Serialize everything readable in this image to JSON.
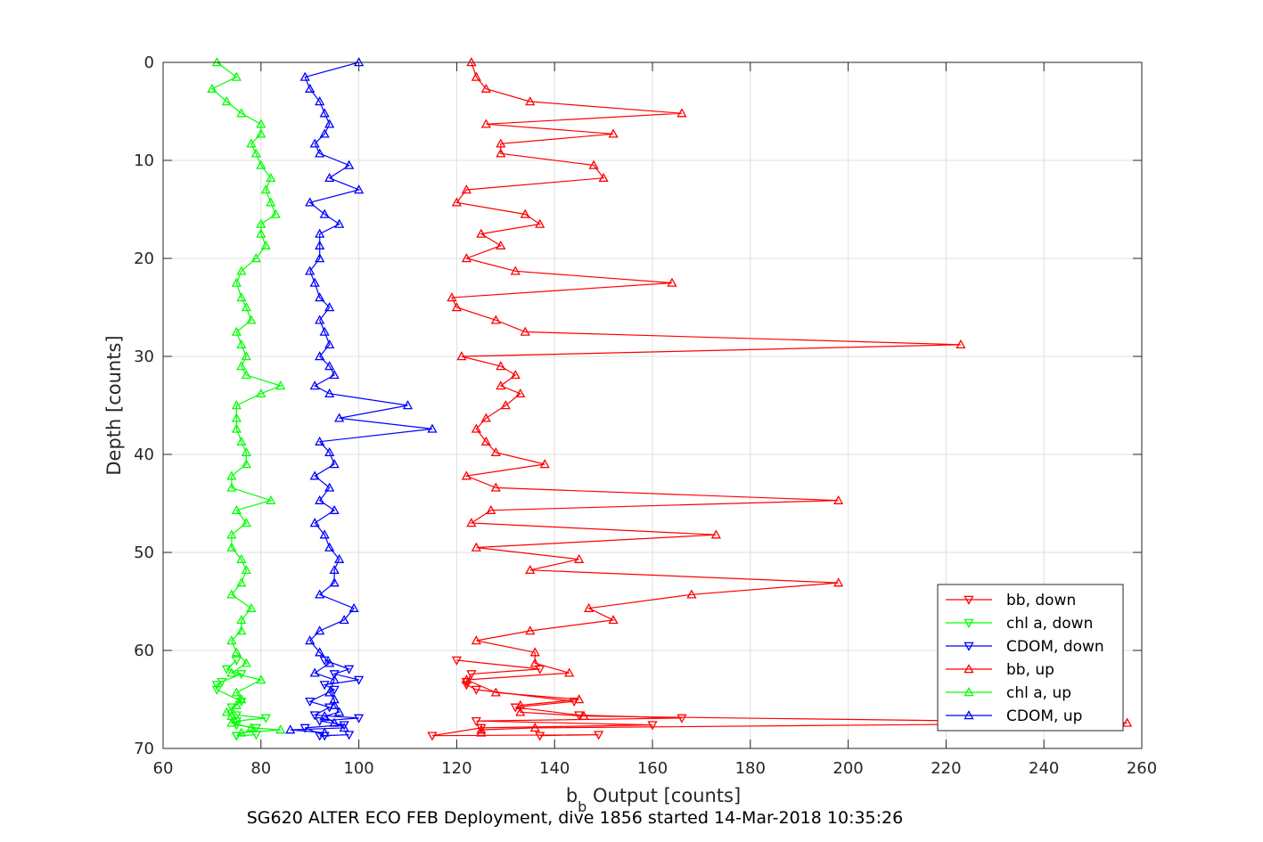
{
  "chart_data": {
    "type": "line",
    "xlabel_main": "b",
    "xlabel_sub": "b",
    "xlabel_rest": " Output [counts]",
    "ylabel": "Depth [counts]",
    "caption": "SG620 ALTER ECO FEB Deployment, dive 1856 started 14-Mar-2018 10:35:26",
    "xlim": [
      60,
      260
    ],
    "ylim": [
      0,
      70
    ],
    "y_reversed": true,
    "grid": true,
    "legend_position": "bottom-right",
    "x_ticks": [
      "60",
      "80",
      "100",
      "120",
      "140",
      "160",
      "180",
      "200",
      "220",
      "240",
      "260"
    ],
    "y_ticks": [
      "0",
      "10",
      "20",
      "30",
      "40",
      "50",
      "60",
      "70"
    ],
    "series": [
      {
        "name": "bb, down",
        "color": "#ff0000",
        "marker": "down",
        "points": [
          [
            120,
            61
          ],
          [
            137,
            61.9
          ],
          [
            123,
            62.4
          ],
          [
            122,
            63.2
          ],
          [
            122,
            63.5
          ],
          [
            124,
            64
          ],
          [
            144,
            65.2
          ],
          [
            132,
            65.8
          ],
          [
            145,
            66.6
          ],
          [
            166,
            66.9
          ],
          [
            124,
            67.2
          ],
          [
            160,
            67.6
          ],
          [
            125,
            67.9
          ],
          [
            115,
            68.7
          ],
          [
            149,
            68.6
          ],
          [
            137,
            68.7
          ]
        ]
      },
      {
        "name": "chl a, down",
        "color": "#00ff00",
        "marker": "down",
        "points": [
          [
            75,
            61
          ],
          [
            73,
            61.9
          ],
          [
            76,
            62.4
          ],
          [
            72,
            63.2
          ],
          [
            71,
            63.5
          ],
          [
            71,
            64
          ],
          [
            76,
            65.2
          ],
          [
            74,
            65.8
          ],
          [
            75,
            66.6
          ],
          [
            81,
            66.9
          ],
          [
            75,
            67.2
          ],
          [
            75,
            67.6
          ],
          [
            79,
            67.9
          ],
          [
            75,
            68.7
          ],
          [
            79,
            68.6
          ],
          [
            75,
            68.7
          ]
        ]
      },
      {
        "name": "CDOM, down",
        "color": "#0000ff",
        "marker": "down",
        "points": [
          [
            93,
            61
          ],
          [
            98,
            61.9
          ],
          [
            95,
            62.4
          ],
          [
            100,
            63
          ],
          [
            93,
            63.5
          ],
          [
            95,
            64
          ],
          [
            90,
            65.2
          ],
          [
            94,
            65.8
          ],
          [
            91,
            66.6
          ],
          [
            100,
            66.9
          ],
          [
            92,
            67.2
          ],
          [
            97,
            67.6
          ],
          [
            89,
            67.9
          ],
          [
            93,
            68.7
          ],
          [
            98,
            68.6
          ],
          [
            92,
            68.7
          ]
        ]
      },
      {
        "name": "bb, up",
        "color": "#ff0000",
        "marker": "up",
        "points": [
          [
            123,
            0
          ],
          [
            124,
            1.5
          ],
          [
            126,
            2.7
          ],
          [
            135,
            4
          ],
          [
            166,
            5.2
          ],
          [
            126,
            6.3
          ],
          [
            152,
            7.3
          ],
          [
            129,
            8.3
          ],
          [
            129,
            9.3
          ],
          [
            148,
            10.5
          ],
          [
            150,
            11.8
          ],
          [
            122,
            13
          ],
          [
            120,
            14.3
          ],
          [
            134,
            15.5
          ],
          [
            137,
            16.5
          ],
          [
            125,
            17.5
          ],
          [
            129,
            18.7
          ],
          [
            122,
            20
          ],
          [
            132,
            21.3
          ],
          [
            164,
            22.5
          ],
          [
            119,
            24
          ],
          [
            120,
            25
          ],
          [
            128,
            26.3
          ],
          [
            134,
            27.5
          ],
          [
            223,
            28.8
          ],
          [
            121,
            30
          ],
          [
            129,
            31
          ],
          [
            132,
            31.9
          ],
          [
            129,
            33
          ],
          [
            133,
            33.8
          ],
          [
            130,
            35
          ],
          [
            126,
            36.3
          ],
          [
            124,
            37.4
          ],
          [
            126,
            38.7
          ],
          [
            128,
            39.8
          ],
          [
            138,
            41
          ],
          [
            122,
            42.2
          ],
          [
            128,
            43.4
          ],
          [
            198,
            44.7
          ],
          [
            127,
            45.7
          ],
          [
            123,
            47
          ],
          [
            173,
            48.2
          ],
          [
            124,
            49.5
          ],
          [
            145,
            50.7
          ],
          [
            135,
            51.8
          ],
          [
            198,
            53.1
          ],
          [
            168,
            54.3
          ],
          [
            147,
            55.7
          ],
          [
            152,
            56.9
          ],
          [
            135,
            58
          ],
          [
            124,
            59
          ],
          [
            136,
            60.2
          ],
          [
            136,
            61.3
          ],
          [
            143,
            62.3
          ],
          [
            122,
            63
          ],
          [
            128,
            64.3
          ],
          [
            145,
            65
          ],
          [
            133,
            65.6
          ],
          [
            133,
            66.3
          ],
          [
            146,
            66.7
          ],
          [
            257,
            67.4
          ],
          [
            136,
            67.9
          ],
          [
            125,
            68.1
          ],
          [
            125,
            68.4
          ]
        ]
      },
      {
        "name": "chl a, up",
        "color": "#00ff00",
        "marker": "up",
        "points": [
          [
            71,
            0
          ],
          [
            75,
            1.5
          ],
          [
            70,
            2.7
          ],
          [
            73,
            4
          ],
          [
            76,
            5.2
          ],
          [
            80,
            6.3
          ],
          [
            80,
            7.3
          ],
          [
            78,
            8.3
          ],
          [
            79,
            9.3
          ],
          [
            80,
            10.5
          ],
          [
            82,
            11.8
          ],
          [
            81,
            13
          ],
          [
            82,
            14.3
          ],
          [
            83,
            15.5
          ],
          [
            80,
            16.5
          ],
          [
            80,
            17.5
          ],
          [
            81,
            18.7
          ],
          [
            79,
            20
          ],
          [
            76,
            21.3
          ],
          [
            75,
            22.5
          ],
          [
            76,
            24
          ],
          [
            77,
            25
          ],
          [
            78,
            26.3
          ],
          [
            75,
            27.5
          ],
          [
            76,
            28.8
          ],
          [
            77,
            30
          ],
          [
            76,
            31
          ],
          [
            77,
            31.9
          ],
          [
            84,
            33
          ],
          [
            80,
            33.8
          ],
          [
            75,
            35
          ],
          [
            75,
            36.3
          ],
          [
            75,
            37.4
          ],
          [
            76,
            38.7
          ],
          [
            77,
            39.8
          ],
          [
            77,
            41
          ],
          [
            74,
            42.2
          ],
          [
            74,
            43.4
          ],
          [
            82,
            44.7
          ],
          [
            75,
            45.7
          ],
          [
            77,
            47
          ],
          [
            74,
            48.2
          ],
          [
            74,
            49.5
          ],
          [
            76,
            50.7
          ],
          [
            77,
            51.8
          ],
          [
            76,
            53.1
          ],
          [
            74,
            54.3
          ],
          [
            78,
            55.7
          ],
          [
            76,
            56.9
          ],
          [
            76,
            58
          ],
          [
            74,
            59
          ],
          [
            75,
            60.2
          ],
          [
            77,
            61.3
          ],
          [
            74,
            62.3
          ],
          [
            80,
            63
          ],
          [
            75,
            64.3
          ],
          [
            76,
            65
          ],
          [
            75,
            65.6
          ],
          [
            73,
            66.3
          ],
          [
            74,
            66.7
          ],
          [
            74,
            67.4
          ],
          [
            78,
            67.9
          ],
          [
            84,
            68.1
          ],
          [
            76,
            68.4
          ]
        ]
      },
      {
        "name": "CDOM, up",
        "color": "#0000ff",
        "marker": "up",
        "points": [
          [
            100,
            0
          ],
          [
            89,
            1.5
          ],
          [
            90,
            2.7
          ],
          [
            92,
            4
          ],
          [
            93,
            5.2
          ],
          [
            94,
            6.3
          ],
          [
            93,
            7.3
          ],
          [
            91,
            8.3
          ],
          [
            92,
            9.3
          ],
          [
            98,
            10.5
          ],
          [
            94,
            11.8
          ],
          [
            100,
            13
          ],
          [
            90,
            14.3
          ],
          [
            93,
            15.5
          ],
          [
            96,
            16.5
          ],
          [
            92,
            17.5
          ],
          [
            92,
            18.7
          ],
          [
            92,
            20
          ],
          [
            90,
            21.3
          ],
          [
            91,
            22.5
          ],
          [
            92,
            24
          ],
          [
            94,
            25
          ],
          [
            92,
            26.3
          ],
          [
            93,
            27.5
          ],
          [
            94,
            28.8
          ],
          [
            92,
            30
          ],
          [
            94,
            31
          ],
          [
            95,
            31.9
          ],
          [
            91,
            33
          ],
          [
            94,
            33.8
          ],
          [
            110,
            35
          ],
          [
            96,
            36.3
          ],
          [
            115,
            37.4
          ],
          [
            92,
            38.7
          ],
          [
            94,
            39.8
          ],
          [
            95,
            41
          ],
          [
            91,
            42.2
          ],
          [
            94,
            43.4
          ],
          [
            92,
            44.7
          ],
          [
            95,
            45.7
          ],
          [
            91,
            47
          ],
          [
            93,
            48.2
          ],
          [
            94,
            49.5
          ],
          [
            96,
            50.7
          ],
          [
            95,
            51.8
          ],
          [
            95,
            53.1
          ],
          [
            92,
            54.3
          ],
          [
            99,
            55.7
          ],
          [
            97,
            56.9
          ],
          [
            92,
            58
          ],
          [
            90,
            59
          ],
          [
            92,
            60.2
          ],
          [
            94,
            61.3
          ],
          [
            91,
            62.3
          ],
          [
            95,
            63
          ],
          [
            94,
            64.3
          ],
          [
            95,
            65
          ],
          [
            95,
            65.6
          ],
          [
            96,
            66.3
          ],
          [
            93,
            66.7
          ],
          [
            95,
            67.4
          ],
          [
            97,
            67.9
          ],
          [
            86,
            68.1
          ],
          [
            93,
            68.4
          ]
        ]
      }
    ]
  }
}
